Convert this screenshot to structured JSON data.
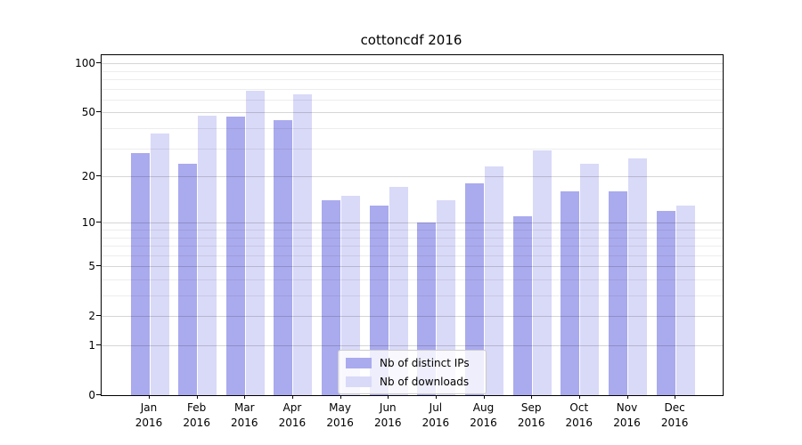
{
  "chart_data": {
    "type": "bar",
    "title": "cottoncdf 2016",
    "categories": [
      "Jan 2016",
      "Feb 2016",
      "Mar 2016",
      "Apr 2016",
      "May 2016",
      "Jun 2016",
      "Jul 2016",
      "Aug 2016",
      "Sep 2016",
      "Oct 2016",
      "Nov 2016",
      "Dec 2016"
    ],
    "series": [
      {
        "name": "Nb of distinct IPs",
        "color": "#aaaaee",
        "values": [
          28,
          24,
          47,
          45,
          14,
          13,
          10,
          18,
          11,
          16,
          16,
          12
        ]
      },
      {
        "name": "Nb of downloads",
        "color": "#d9d9f8",
        "values": [
          37,
          48,
          68,
          65,
          15,
          17,
          14,
          23,
          29,
          24,
          26,
          13
        ]
      }
    ],
    "xlabel": "",
    "ylabel": "",
    "yscale": "log1p",
    "ylim": [
      0,
      112
    ],
    "yticks": [
      0,
      1,
      2,
      5,
      10,
      20,
      50,
      100
    ],
    "grid": true,
    "legend_position": "lower center"
  }
}
